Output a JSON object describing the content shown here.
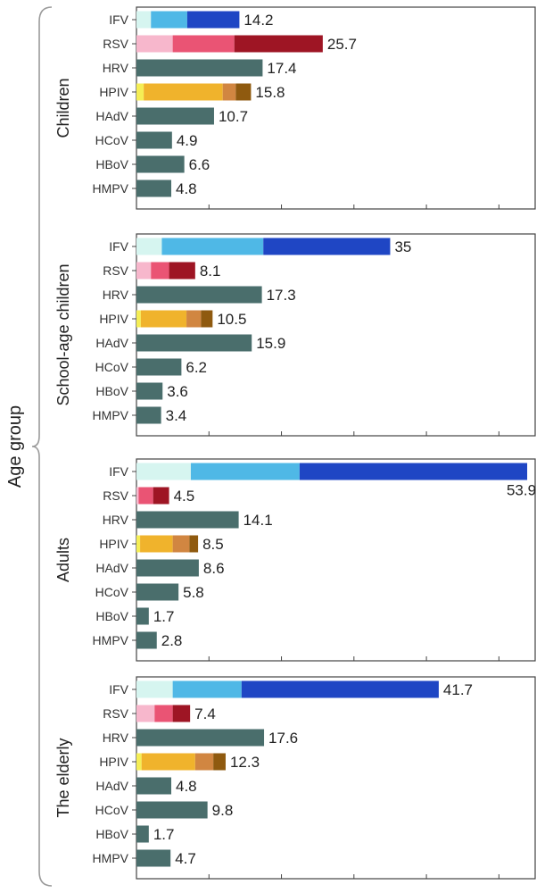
{
  "chart_data": {
    "type": "bar",
    "stacked": true,
    "orientation": "horizontal",
    "ylabel": "Age group",
    "xlim": [
      0,
      55
    ],
    "categories": [
      "IFV",
      "RSV",
      "HRV",
      "HPIV",
      "HAdV",
      "HCoV",
      "HBoV",
      "HMPV"
    ],
    "colors": {
      "IFV": [
        "#d6f5f0",
        "#4fb8e6",
        "#1f46c4"
      ],
      "RSV": [
        "#f7b7cc",
        "#ea5474",
        "#9e1524"
      ],
      "HRV": [
        "#4a6e6c"
      ],
      "HPIV": [
        "#f5ee55",
        "#f0b32c",
        "#d18641",
        "#8f5a0f"
      ],
      "HAdV": [
        "#4a6e6c"
      ],
      "HCoV": [
        "#4a6e6c"
      ],
      "HBoV": [
        "#4a6e6c"
      ],
      "HMPV": [
        "#4a6e6c"
      ]
    },
    "groups": [
      {
        "name": "Children",
        "bars": [
          {
            "category": "IFV",
            "total": 14.2,
            "total_label": "14.2",
            "segments": [
              2.0,
              5.0,
              7.2
            ]
          },
          {
            "category": "RSV",
            "total": 25.7,
            "total_label": "25.7",
            "segments": [
              5.0,
              8.5,
              12.2
            ]
          },
          {
            "category": "HRV",
            "total": 17.4,
            "total_label": "17.4",
            "segments": [
              17.4
            ]
          },
          {
            "category": "HPIV",
            "total": 15.8,
            "total_label": "15.8",
            "segments": [
              1.0,
              10.9,
              1.8,
              2.1
            ]
          },
          {
            "category": "HAdV",
            "total": 10.7,
            "total_label": "10.7",
            "segments": [
              10.7
            ]
          },
          {
            "category": "HCoV",
            "total": 4.9,
            "total_label": "4.9",
            "segments": [
              4.9
            ]
          },
          {
            "category": "HBoV",
            "total": 6.6,
            "total_label": "6.6",
            "segments": [
              6.6
            ]
          },
          {
            "category": "HMPV",
            "total": 4.8,
            "total_label": "4.8",
            "segments": [
              4.8
            ]
          }
        ]
      },
      {
        "name": "School-age children",
        "bars": [
          {
            "category": "IFV",
            "total": 35,
            "total_label": "35",
            "segments": [
              3.5,
              14.0,
              17.5
            ]
          },
          {
            "category": "RSV",
            "total": 8.1,
            "total_label": "8.1",
            "segments": [
              2.0,
              2.5,
              3.6
            ]
          },
          {
            "category": "HRV",
            "total": 17.3,
            "total_label": "17.3",
            "segments": [
              17.3
            ]
          },
          {
            "category": "HPIV",
            "total": 10.5,
            "total_label": "10.5",
            "segments": [
              0.6,
              6.3,
              2.0,
              1.6
            ]
          },
          {
            "category": "HAdV",
            "total": 15.9,
            "total_label": "15.9",
            "segments": [
              15.9
            ]
          },
          {
            "category": "HCoV",
            "total": 6.2,
            "total_label": "6.2",
            "segments": [
              6.2
            ]
          },
          {
            "category": "HBoV",
            "total": 3.6,
            "total_label": "3.6",
            "segments": [
              3.6
            ]
          },
          {
            "category": "HMPV",
            "total": 3.4,
            "total_label": "3.4",
            "segments": [
              3.4
            ]
          }
        ]
      },
      {
        "name": "Adults",
        "bars": [
          {
            "category": "IFV",
            "total": 53.9,
            "total_label": "53.9",
            "segments": [
              7.5,
              15.0,
              31.4
            ]
          },
          {
            "category": "RSV",
            "total": 4.5,
            "total_label": "4.5",
            "segments": [
              0.3,
              2.0,
              2.2
            ]
          },
          {
            "category": "HRV",
            "total": 14.1,
            "total_label": "14.1",
            "segments": [
              14.1
            ]
          },
          {
            "category": "HPIV",
            "total": 8.5,
            "total_label": "8.5",
            "segments": [
              0.5,
              4.5,
              2.3,
              1.2
            ]
          },
          {
            "category": "HAdV",
            "total": 8.6,
            "total_label": "8.6",
            "segments": [
              8.6
            ]
          },
          {
            "category": "HCoV",
            "total": 5.8,
            "total_label": "5.8",
            "segments": [
              5.8
            ]
          },
          {
            "category": "HBoV",
            "total": 1.7,
            "total_label": "1.7",
            "segments": [
              1.7
            ]
          },
          {
            "category": "HMPV",
            "total": 2.8,
            "total_label": "2.8",
            "segments": [
              2.8
            ]
          }
        ]
      },
      {
        "name": "The elderly",
        "bars": [
          {
            "category": "IFV",
            "total": 41.7,
            "total_label": "41.7",
            "segments": [
              5.0,
              9.5,
              27.2
            ]
          },
          {
            "category": "RSV",
            "total": 7.4,
            "total_label": "7.4",
            "segments": [
              2.5,
              2.5,
              2.4
            ]
          },
          {
            "category": "HRV",
            "total": 17.6,
            "total_label": "17.6",
            "segments": [
              17.6
            ]
          },
          {
            "category": "HPIV",
            "total": 12.3,
            "total_label": "12.3",
            "segments": [
              0.7,
              7.4,
              2.5,
              1.7
            ]
          },
          {
            "category": "HAdV",
            "total": 4.8,
            "total_label": "4.8",
            "segments": [
              4.8
            ]
          },
          {
            "category": "HCoV",
            "total": 9.8,
            "total_label": "9.8",
            "segments": [
              9.8
            ]
          },
          {
            "category": "HBoV",
            "total": 1.7,
            "total_label": "1.7",
            "segments": [
              1.7
            ]
          },
          {
            "category": "HMPV",
            "total": 4.7,
            "total_label": "4.7",
            "segments": [
              4.7
            ]
          }
        ]
      }
    ]
  }
}
